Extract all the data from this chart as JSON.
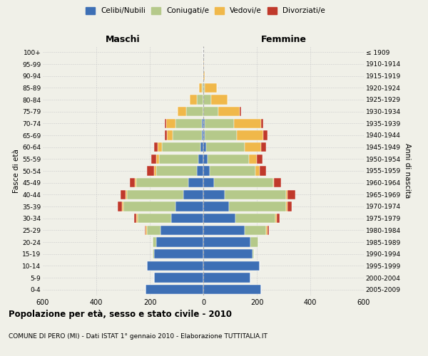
{
  "age_groups": [
    "0-4",
    "5-9",
    "10-14",
    "15-19",
    "20-24",
    "25-29",
    "30-34",
    "35-39",
    "40-44",
    "45-49",
    "50-54",
    "55-59",
    "60-64",
    "65-69",
    "70-74",
    "75-79",
    "80-84",
    "85-89",
    "90-94",
    "95-99",
    "100+"
  ],
  "birth_years": [
    "2005-2009",
    "2000-2004",
    "1995-1999",
    "1990-1994",
    "1985-1989",
    "1980-1984",
    "1975-1979",
    "1970-1974",
    "1965-1969",
    "1960-1964",
    "1955-1959",
    "1950-1954",
    "1945-1949",
    "1940-1944",
    "1935-1939",
    "1930-1934",
    "1925-1929",
    "1920-1924",
    "1915-1919",
    "1910-1914",
    "≤ 1909"
  ],
  "male": {
    "celibi": [
      215,
      185,
      210,
      185,
      175,
      160,
      120,
      105,
      75,
      55,
      25,
      20,
      10,
      5,
      5,
      0,
      0,
      0,
      0,
      0,
      0
    ],
    "coniugati": [
      0,
      0,
      0,
      5,
      15,
      50,
      125,
      195,
      210,
      195,
      150,
      145,
      145,
      110,
      100,
      65,
      25,
      5,
      0,
      0,
      0
    ],
    "vedovi": [
      0,
      0,
      0,
      0,
      0,
      5,
      5,
      5,
      5,
      5,
      10,
      10,
      15,
      20,
      35,
      30,
      25,
      10,
      1,
      0,
      0
    ],
    "divorziati": [
      0,
      0,
      0,
      0,
      0,
      5,
      10,
      15,
      20,
      20,
      25,
      20,
      15,
      10,
      5,
      0,
      0,
      0,
      0,
      0,
      0
    ]
  },
  "female": {
    "nubili": [
      215,
      175,
      210,
      185,
      175,
      155,
      120,
      95,
      80,
      40,
      25,
      15,
      10,
      5,
      5,
      0,
      0,
      0,
      0,
      0,
      0
    ],
    "coniugate": [
      0,
      0,
      0,
      5,
      30,
      80,
      150,
      215,
      230,
      220,
      170,
      155,
      145,
      120,
      110,
      55,
      30,
      5,
      0,
      0,
      0
    ],
    "vedove": [
      0,
      0,
      0,
      0,
      0,
      5,
      5,
      5,
      5,
      5,
      15,
      30,
      60,
      100,
      100,
      80,
      60,
      45,
      5,
      2,
      1
    ],
    "divorziate": [
      0,
      0,
      0,
      0,
      0,
      5,
      10,
      15,
      30,
      25,
      25,
      20,
      20,
      15,
      10,
      5,
      0,
      0,
      0,
      0,
      0
    ]
  },
  "colors": {
    "celibi_nubili": "#3d6fb5",
    "coniugati": "#b5c98a",
    "vedovi": "#f0b84a",
    "divorziati": "#c0392b"
  },
  "title": "Popolazione per età, sesso e stato civile - 2010",
  "subtitle": "COMUNE DI PERO (MI) - Dati ISTAT 1° gennaio 2010 - Elaborazione TUTTITALIA.IT",
  "xlabel_left": "Maschi",
  "xlabel_right": "Femmine",
  "ylabel_left": "Fasce di età",
  "ylabel_right": "Anni di nascita",
  "xlim": 600,
  "bg_color": "#f0f0e8"
}
